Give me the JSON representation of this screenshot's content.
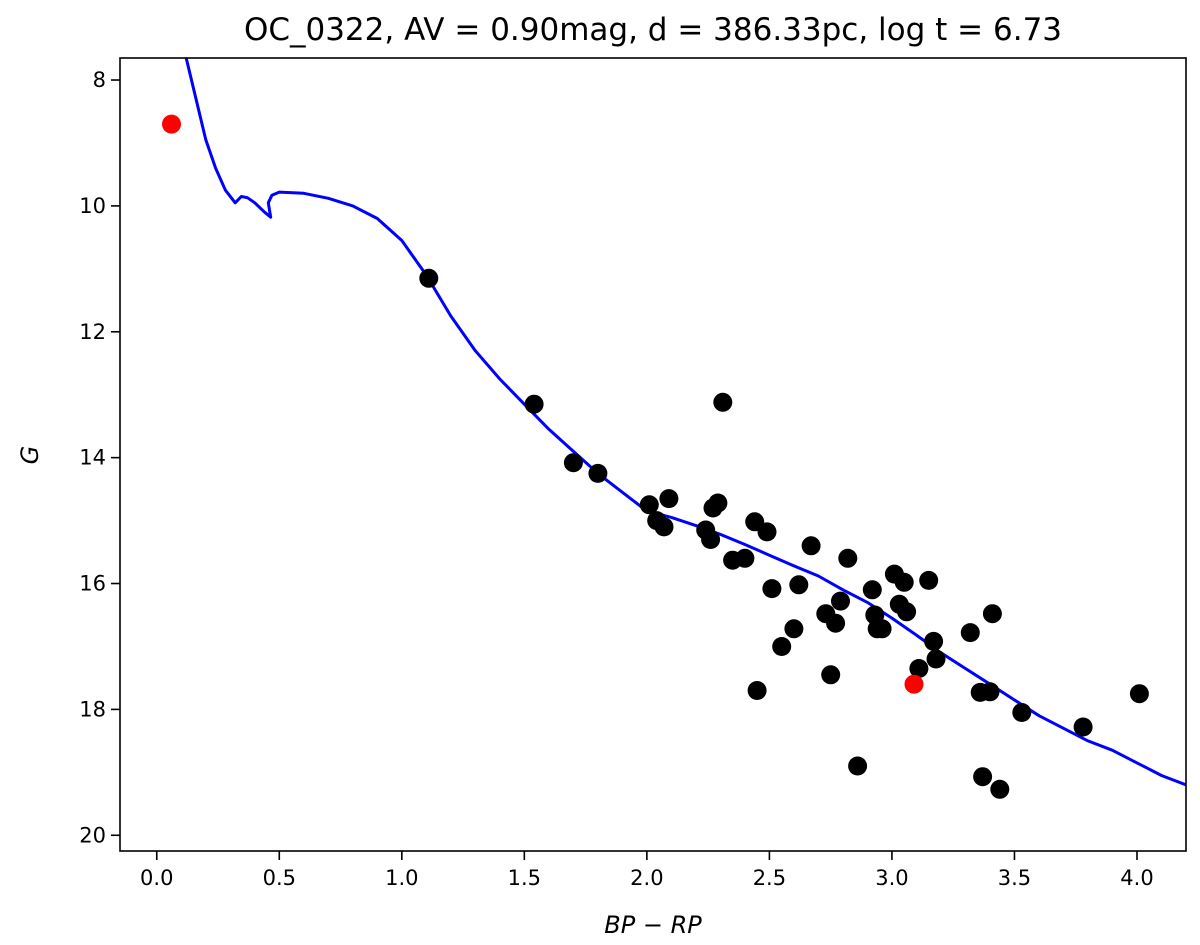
{
  "chart_data": {
    "type": "scatter",
    "title": "OC_0322, AV = 0.90mag, d = 386.33pc, log t = 6.73",
    "xlabel": "BP − RP",
    "ylabel": "G",
    "xlim": [
      -0.15,
      4.2
    ],
    "ylim": [
      20.25,
      7.65
    ],
    "y_inverted": true,
    "grid": false,
    "x_ticks": [
      "0.0",
      "0.5",
      "1.0",
      "1.5",
      "2.0",
      "2.5",
      "3.0",
      "3.5",
      "4.0"
    ],
    "x_tick_values": [
      0.0,
      0.5,
      1.0,
      1.5,
      2.0,
      2.5,
      3.0,
      3.5,
      4.0
    ],
    "y_ticks": [
      "8",
      "10",
      "12",
      "14",
      "16",
      "18",
      "20"
    ],
    "y_tick_values": [
      8,
      10,
      12,
      14,
      16,
      18,
      20
    ],
    "colors": {
      "members": "#000000",
      "highlighted": "#ff0000",
      "isochrone": "#0000ff"
    },
    "series": [
      {
        "kind": "points",
        "color_key": "members",
        "points": [
          [
            1.11,
            11.15
          ],
          [
            1.54,
            13.15
          ],
          [
            1.7,
            14.08
          ],
          [
            1.8,
            14.25
          ],
          [
            2.01,
            14.75
          ],
          [
            2.04,
            15.0
          ],
          [
            2.07,
            15.1
          ],
          [
            2.09,
            14.65
          ],
          [
            2.24,
            15.15
          ],
          [
            2.26,
            15.3
          ],
          [
            2.27,
            14.8
          ],
          [
            2.29,
            14.72
          ],
          [
            2.31,
            13.12
          ],
          [
            2.35,
            15.63
          ],
          [
            2.4,
            15.6
          ],
          [
            2.44,
            15.02
          ],
          [
            2.45,
            17.7
          ],
          [
            2.49,
            15.18
          ],
          [
            2.51,
            16.08
          ],
          [
            2.55,
            17.0
          ],
          [
            2.6,
            16.72
          ],
          [
            2.62,
            16.02
          ],
          [
            2.67,
            15.4
          ],
          [
            2.73,
            16.48
          ],
          [
            2.75,
            17.45
          ],
          [
            2.77,
            16.63
          ],
          [
            2.79,
            16.28
          ],
          [
            2.82,
            15.6
          ],
          [
            2.86,
            18.9
          ],
          [
            2.92,
            16.1
          ],
          [
            2.93,
            16.5
          ],
          [
            2.94,
            16.72
          ],
          [
            2.96,
            16.72
          ],
          [
            3.01,
            15.85
          ],
          [
            3.03,
            16.33
          ],
          [
            3.05,
            15.98
          ],
          [
            3.06,
            16.45
          ],
          [
            3.11,
            17.35
          ],
          [
            3.15,
            15.95
          ],
          [
            3.17,
            16.92
          ],
          [
            3.18,
            17.2
          ],
          [
            3.32,
            16.78
          ],
          [
            3.36,
            17.73
          ],
          [
            3.37,
            19.07
          ],
          [
            3.4,
            17.72
          ],
          [
            3.41,
            16.48
          ],
          [
            3.44,
            19.27
          ],
          [
            3.53,
            18.05
          ],
          [
            3.78,
            18.28
          ],
          [
            4.01,
            17.75
          ]
        ]
      },
      {
        "kind": "points",
        "color_key": "highlighted",
        "points": [
          [
            0.06,
            8.7
          ],
          [
            3.09,
            17.6
          ]
        ]
      },
      {
        "kind": "line",
        "color_key": "isochrone",
        "points": [
          [
            0.12,
            7.65
          ],
          [
            0.16,
            8.3
          ],
          [
            0.2,
            8.95
          ],
          [
            0.24,
            9.4
          ],
          [
            0.28,
            9.75
          ],
          [
            0.32,
            9.95
          ],
          [
            0.345,
            9.85
          ],
          [
            0.37,
            9.87
          ],
          [
            0.4,
            9.95
          ],
          [
            0.44,
            10.1
          ],
          [
            0.465,
            10.18
          ],
          [
            0.455,
            9.95
          ],
          [
            0.47,
            9.83
          ],
          [
            0.5,
            9.78
          ],
          [
            0.6,
            9.8
          ],
          [
            0.7,
            9.88
          ],
          [
            0.8,
            10.0
          ],
          [
            0.9,
            10.2
          ],
          [
            1.0,
            10.55
          ],
          [
            1.1,
            11.1
          ],
          [
            1.2,
            11.75
          ],
          [
            1.3,
            12.3
          ],
          [
            1.4,
            12.75
          ],
          [
            1.5,
            13.15
          ],
          [
            1.6,
            13.55
          ],
          [
            1.7,
            13.9
          ],
          [
            1.8,
            14.25
          ],
          [
            1.9,
            14.55
          ],
          [
            2.0,
            14.85
          ],
          [
            2.1,
            14.95
          ],
          [
            2.2,
            15.08
          ],
          [
            2.3,
            15.22
          ],
          [
            2.4,
            15.38
          ],
          [
            2.5,
            15.55
          ],
          [
            2.6,
            15.72
          ],
          [
            2.7,
            15.88
          ],
          [
            2.8,
            16.1
          ],
          [
            2.9,
            16.3
          ],
          [
            3.0,
            16.55
          ],
          [
            3.1,
            16.82
          ],
          [
            3.2,
            17.1
          ],
          [
            3.3,
            17.35
          ],
          [
            3.4,
            17.6
          ],
          [
            3.5,
            17.85
          ],
          [
            3.6,
            18.1
          ],
          [
            3.7,
            18.3
          ],
          [
            3.8,
            18.5
          ],
          [
            3.9,
            18.65
          ],
          [
            4.0,
            18.85
          ],
          [
            4.1,
            19.05
          ],
          [
            4.2,
            19.2
          ]
        ]
      }
    ]
  }
}
